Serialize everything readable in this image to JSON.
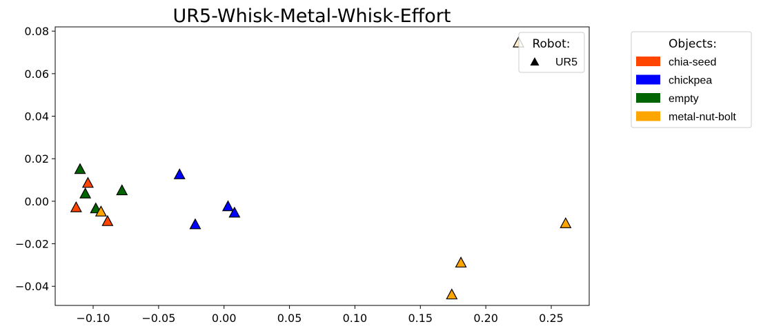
{
  "chart_data": {
    "type": "scatter",
    "title": "UR5-Whisk-Metal-Whisk-Effort",
    "xlabel": "",
    "ylabel": "",
    "xlim": [
      -0.129,
      0.279
    ],
    "ylim": [
      -0.049,
      0.082
    ],
    "xticks": [
      -0.1,
      -0.05,
      0.0,
      0.05,
      0.1,
      0.15,
      0.2,
      0.25
    ],
    "xtick_labels": [
      "−0.10",
      "−0.05",
      "0.00",
      "0.05",
      "0.10",
      "0.15",
      "0.20",
      "0.25"
    ],
    "yticks": [
      -0.04,
      -0.02,
      0.0,
      0.02,
      0.04,
      0.06,
      0.08
    ],
    "ytick_labels": [
      "−0.04",
      "−0.02",
      "0.00",
      "0.02",
      "0.04",
      "0.06",
      "0.08"
    ],
    "grid": false,
    "marker": "triangle",
    "series": [
      {
        "name": "chia-seed",
        "color": "#ff4500",
        "points": [
          [
            -0.113,
            -0.003
          ],
          [
            -0.104,
            0.0085
          ],
          [
            -0.089,
            -0.0095
          ]
        ]
      },
      {
        "name": "chickpea",
        "color": "#0000ff",
        "points": [
          [
            -0.034,
            0.0125
          ],
          [
            -0.022,
            -0.011
          ],
          [
            0.003,
            -0.0025
          ],
          [
            0.008,
            -0.0055
          ]
        ]
      },
      {
        "name": "empty",
        "color": "#006400",
        "points": [
          [
            -0.11,
            0.015
          ],
          [
            -0.106,
            0.0035
          ],
          [
            -0.098,
            -0.0035
          ],
          [
            -0.078,
            0.005
          ]
        ]
      },
      {
        "name": "metal-nut-bolt",
        "color": "#ffa500",
        "points": [
          [
            -0.094,
            -0.005
          ],
          [
            0.174,
            -0.044
          ],
          [
            0.181,
            -0.029
          ],
          [
            0.261,
            -0.0105
          ],
          [
            0.225,
            0.0745
          ]
        ]
      }
    ],
    "legends": {
      "robot": {
        "title": "Robot:",
        "placement": "top-right inside",
        "entries": [
          {
            "label": "UR5",
            "marker": "triangle",
            "color": "#000000"
          }
        ]
      },
      "objects": {
        "title": "Objects:",
        "placement": "right outside",
        "entries": [
          {
            "label": "chia-seed",
            "color": "#ff4500"
          },
          {
            "label": "chickpea",
            "color": "#0000ff"
          },
          {
            "label": "empty",
            "color": "#006400"
          },
          {
            "label": "metal-nut-bolt",
            "color": "#ffa500"
          }
        ]
      }
    }
  }
}
